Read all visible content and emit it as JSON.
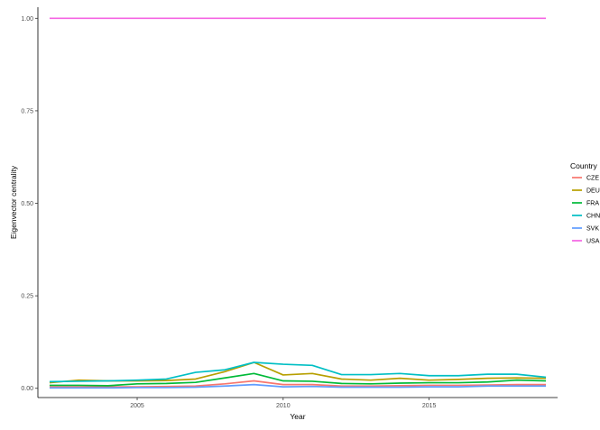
{
  "chart_data": {
    "type": "line",
    "xlabel": "Year",
    "ylabel": "Eigenvector centrality",
    "xlim": [
      2001.6,
      2019.4
    ],
    "ylim": [
      -0.025,
      1.03
    ],
    "x_ticks": [
      2005,
      2010,
      2015
    ],
    "y_ticks": [
      0.0,
      0.25,
      0.5,
      0.75,
      1.0
    ],
    "x_tick_labels": [
      "2005",
      "2010",
      "2015"
    ],
    "y_tick_labels": [
      "0.00",
      "0.25",
      "0.50",
      "0.75",
      "1.00"
    ],
    "grid": false,
    "legend": {
      "title": "Country",
      "position": "right"
    },
    "x": [
      2002,
      2003,
      2004,
      2005,
      2006,
      2007,
      2008,
      2009,
      2010,
      2011,
      2012,
      2013,
      2014,
      2015,
      2016,
      2017,
      2018,
      2019
    ],
    "series": [
      {
        "name": "CZE",
        "color": "#F8766D",
        "values": [
          0.004,
          0.004,
          0.004,
          0.004,
          0.005,
          0.006,
          0.012,
          0.02,
          0.01,
          0.01,
          0.006,
          0.006,
          0.007,
          0.008,
          0.008,
          0.009,
          0.01,
          0.01
        ]
      },
      {
        "name": "DEU",
        "color": "#B79F00",
        "values": [
          0.015,
          0.022,
          0.02,
          0.02,
          0.021,
          0.025,
          0.045,
          0.07,
          0.036,
          0.04,
          0.025,
          0.022,
          0.027,
          0.022,
          0.024,
          0.027,
          0.028,
          0.027
        ]
      },
      {
        "name": "FRA",
        "color": "#00BA38",
        "values": [
          0.008,
          0.008,
          0.007,
          0.012,
          0.013,
          0.016,
          0.028,
          0.04,
          0.02,
          0.019,
          0.013,
          0.012,
          0.014,
          0.015,
          0.015,
          0.017,
          0.022,
          0.02
        ]
      },
      {
        "name": "CHN",
        "color": "#00BFC4",
        "values": [
          0.018,
          0.019,
          0.02,
          0.022,
          0.025,
          0.043,
          0.05,
          0.07,
          0.065,
          0.062,
          0.037,
          0.037,
          0.04,
          0.034,
          0.034,
          0.038,
          0.038,
          0.03
        ]
      },
      {
        "name": "SVK",
        "color": "#619CFF",
        "values": [
          0.001,
          0.001,
          0.001,
          0.002,
          0.002,
          0.003,
          0.006,
          0.01,
          0.004,
          0.005,
          0.003,
          0.003,
          0.003,
          0.004,
          0.004,
          0.006,
          0.006,
          0.006
        ]
      },
      {
        "name": "USA",
        "color": "#F564E3",
        "values": [
          1.0,
          1.0,
          1.0,
          1.0,
          1.0,
          1.0,
          1.0,
          1.0,
          1.0,
          1.0,
          1.0,
          1.0,
          1.0,
          1.0,
          1.0,
          1.0,
          1.0,
          1.0
        ]
      }
    ]
  }
}
